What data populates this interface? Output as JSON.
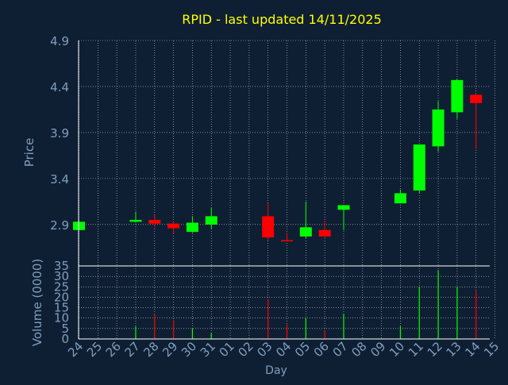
{
  "chart_data": {
    "type": "candlestick",
    "title": "RPID - last updated 14/11/2025",
    "xlabel": "Day",
    "x_ticks": [
      "24",
      "25",
      "26",
      "27",
      "28",
      "29",
      "30",
      "31",
      "01",
      "02",
      "03",
      "04",
      "05",
      "06",
      "07",
      "08",
      "09",
      "10",
      "11",
      "12",
      "13",
      "14",
      "15"
    ],
    "price_panel": {
      "ylabel": "Price",
      "ylim": [
        2.45,
        4.9
      ],
      "y_ticks": [
        "4.9",
        "4.4",
        "3.9",
        "3.4",
        "2.9"
      ],
      "candles": [
        {
          "day": "24",
          "open": 2.84,
          "high": 2.94,
          "low": 2.84,
          "close": 2.93
        },
        {
          "day": "27",
          "open": 2.93,
          "high": 3.04,
          "low": 2.92,
          "close": 2.95
        },
        {
          "day": "28",
          "open": 2.95,
          "high": 3.0,
          "low": 2.87,
          "close": 2.91
        },
        {
          "day": "29",
          "open": 2.91,
          "high": 2.93,
          "low": 2.8,
          "close": 2.86
        },
        {
          "day": "30",
          "open": 2.82,
          "high": 2.99,
          "low": 2.81,
          "close": 2.92
        },
        {
          "day": "31",
          "open": 2.9,
          "high": 3.08,
          "low": 2.85,
          "close": 2.99
        },
        {
          "day": "03",
          "open": 2.99,
          "high": 3.13,
          "low": 2.73,
          "close": 2.76
        },
        {
          "day": "04",
          "open": 2.73,
          "high": 2.81,
          "low": 2.72,
          "close": 2.72
        },
        {
          "day": "05",
          "open": 2.77,
          "high": 3.15,
          "low": 2.75,
          "close": 2.87
        },
        {
          "day": "06",
          "open": 2.84,
          "high": 2.94,
          "low": 2.76,
          "close": 2.77
        },
        {
          "day": "07",
          "open": 3.06,
          "high": 3.11,
          "low": 2.84,
          "close": 3.11
        },
        {
          "day": "10",
          "open": 3.13,
          "high": 3.28,
          "low": 3.13,
          "close": 3.24
        },
        {
          "day": "11",
          "open": 3.27,
          "high": 3.77,
          "low": 3.24,
          "close": 3.77
        },
        {
          "day": "12",
          "open": 3.75,
          "high": 4.24,
          "low": 3.69,
          "close": 4.15
        },
        {
          "day": "13",
          "open": 4.12,
          "high": 4.48,
          "low": 4.05,
          "close": 4.47
        },
        {
          "day": "14",
          "open": 4.31,
          "high": 4.32,
          "low": 3.72,
          "close": 4.22
        }
      ]
    },
    "volume_panel": {
      "ylabel": "Volume (0000)",
      "ylim": [
        0,
        35
      ],
      "y_ticks": [
        "35",
        "30",
        "25",
        "20",
        "15",
        "10",
        "5",
        "0"
      ],
      "bars": [
        {
          "day": "27",
          "value": 6,
          "direction": "up"
        },
        {
          "day": "28",
          "value": 12,
          "direction": "down"
        },
        {
          "day": "29",
          "value": 9,
          "direction": "down"
        },
        {
          "day": "30",
          "value": 5,
          "direction": "up"
        },
        {
          "day": "31",
          "value": 3,
          "direction": "up"
        },
        {
          "day": "03",
          "value": 19,
          "direction": "down"
        },
        {
          "day": "04",
          "value": 7,
          "direction": "down"
        },
        {
          "day": "05",
          "value": 10,
          "direction": "up"
        },
        {
          "day": "06",
          "value": 4,
          "direction": "down"
        },
        {
          "day": "07",
          "value": 12,
          "direction": "up"
        },
        {
          "day": "10",
          "value": 6,
          "direction": "up"
        },
        {
          "day": "11",
          "value": 25,
          "direction": "up"
        },
        {
          "day": "12",
          "value": 33,
          "direction": "up"
        },
        {
          "day": "13",
          "value": 25,
          "direction": "up"
        },
        {
          "day": "14",
          "value": 23,
          "direction": "down"
        }
      ]
    },
    "grid": true,
    "colors": {
      "background": "#0f1f33",
      "up": "#00ff00",
      "down": "#ff0000",
      "title": "#ffff00",
      "axis_text": "#7f9fbf",
      "axis_line": "#ffffff",
      "grid": "#ffffff"
    }
  }
}
